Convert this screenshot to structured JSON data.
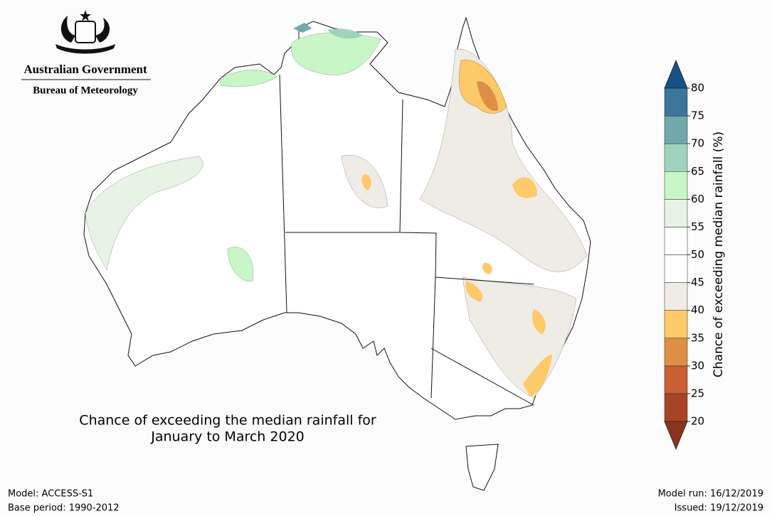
{
  "header": {
    "line1": "Australian Government",
    "line2": "Bureau of Meteorology"
  },
  "title": {
    "line1": "Chance of exceeding the median rainfall for",
    "line2": "January to March 2020"
  },
  "colorbar": {
    "label": "Chance of exceeding median rainfall (%)",
    "ticks": [
      20,
      25,
      30,
      35,
      40,
      45,
      50,
      55,
      60,
      65,
      70,
      75,
      80
    ],
    "colors": [
      "#a84424",
      "#c95f33",
      "#de8f45",
      "#fdca6a",
      "#efebe5",
      "#ffffff",
      "#ffffff",
      "#e7f4e5",
      "#c9f6c6",
      "#9fd3bd",
      "#70a8ab",
      "#3a779a"
    ],
    "under_color": "#8b3320",
    "over_color": "#174f87"
  },
  "footer": {
    "model": "Model: ACCESS-S1",
    "base_period": "Base period: 1990-2012",
    "model_run": "Model run: 16/12/2019",
    "issued": "Issued: 19/12/2019"
  }
}
